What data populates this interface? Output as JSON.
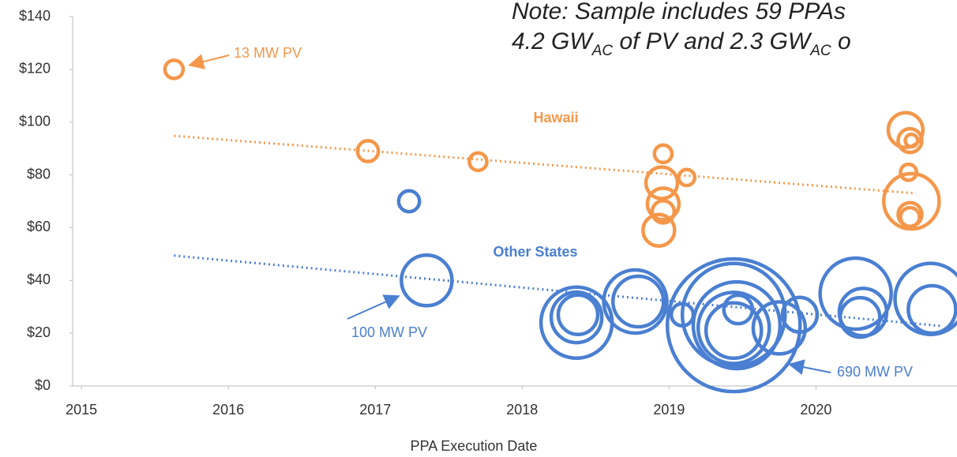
{
  "chart_data": {
    "type": "bubble",
    "note": [
      [
        "Note: Sample includes 59 PPAs"
      ],
      [
        "4.2 GW",
        "AC",
        " of PV and 2.3 GW",
        "AC",
        " o"
      ]
    ],
    "xlabel": "PPA Execution Date",
    "xlim": [
      2014.94,
      2020.96
    ],
    "xticks": [
      2015,
      2016,
      2017,
      2018,
      2019,
      2020
    ],
    "ylim": [
      0,
      140
    ],
    "yticks": [
      {
        "value": 0,
        "label": "$0"
      },
      {
        "value": 20,
        "label": "$20"
      },
      {
        "value": 40,
        "label": "$40"
      },
      {
        "value": 60,
        "label": "$60"
      },
      {
        "value": 80,
        "label": "$80"
      },
      {
        "value": 100,
        "label": "$100"
      },
      {
        "value": 120,
        "label": "$120"
      },
      {
        "value": 140,
        "label": "$140"
      }
    ],
    "annotations": [
      "13 MW PV",
      "100 MW PV",
      "690 MW PV"
    ],
    "series": [
      {
        "name": "Hawaii",
        "color": "#f4974a",
        "x": [
          2015.63,
          2016.95,
          2017.7,
          2018.96,
          2019.12,
          2018.95,
          2018.96,
          2018.96,
          2018.93,
          2020.61,
          2020.64,
          2020.65,
          2020.63,
          2020.65,
          2020.64,
          2020.64
        ],
        "values": [
          120,
          89,
          85,
          88,
          79,
          77,
          69,
          66,
          59,
          97,
          93,
          93,
          81,
          70,
          65,
          64
        ],
        "sizes": [
          13,
          17,
          12,
          12,
          10,
          39,
          39,
          19,
          39,
          47,
          22,
          6,
          10,
          120,
          22,
          14
        ],
        "trend": {
          "x": [
            2015.63,
            2020.68
          ],
          "values": [
            94.8,
            73
          ]
        }
      },
      {
        "name": "Other States",
        "color": "#4a7fd2",
        "x": [
          2017.23,
          2017.35,
          2018.37,
          2018.37,
          2018.38,
          2018.77,
          2018.79,
          2019.09,
          2019.44,
          2019.44,
          2019.46,
          2019.44,
          2019.44,
          2019.47,
          2019.75,
          2019.89,
          2020.27,
          2020.32,
          2020.3,
          2020.78,
          2020.79
        ],
        "values": [
          70,
          40,
          24,
          26,
          27,
          32,
          32,
          27,
          23,
          27,
          23,
          22,
          21,
          29,
          22,
          27,
          35,
          28,
          26,
          33,
          29
        ],
        "sizes": [
          17,
          100,
          198,
          100,
          61,
          156,
          100,
          19,
          690,
          413,
          295,
          198,
          120,
          32,
          106,
          47,
          198,
          88,
          61,
          198,
          88
        ],
        "trend": {
          "x": [
            2015.63,
            2020.86
          ],
          "values": [
            49.4,
            22.7
          ]
        }
      }
    ]
  }
}
